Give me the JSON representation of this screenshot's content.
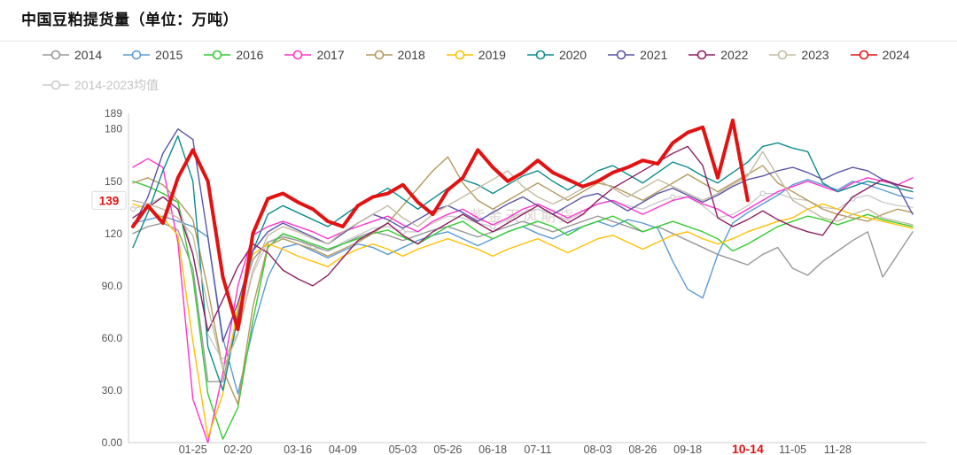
{
  "chart_data": {
    "type": "line",
    "title": "中国豆粕提货量（单位：万吨）",
    "watermark": "紫金天风期货",
    "xlabel": "",
    "ylabel": "",
    "grid": false,
    "legend_position": "top",
    "ylim": [
      0,
      189
    ],
    "n_points": 53,
    "y_ticks": [
      {
        "v": 0,
        "label": "0.00"
      },
      {
        "v": 30,
        "label": "30.0"
      },
      {
        "v": 60,
        "label": "60.0"
      },
      {
        "v": 90,
        "label": "90.0"
      },
      {
        "v": 120,
        "label": "120"
      },
      {
        "v": 150,
        "label": "150"
      },
      {
        "v": 180,
        "label": "180"
      },
      {
        "v": 189,
        "label": "189"
      }
    ],
    "y_highlight": {
      "v": 139,
      "label": "139",
      "color": "#E31212"
    },
    "x_ticks": [
      {
        "i": 4,
        "label": "01-25"
      },
      {
        "i": 7,
        "label": "02-20"
      },
      {
        "i": 11,
        "label": "03-16"
      },
      {
        "i": 14,
        "label": "04-09"
      },
      {
        "i": 18,
        "label": "05-03"
      },
      {
        "i": 21,
        "label": "05-26"
      },
      {
        "i": 24,
        "label": "06-18"
      },
      {
        "i": 27,
        "label": "07-11"
      },
      {
        "i": 31,
        "label": "08-03"
      },
      {
        "i": 34,
        "label": "08-26"
      },
      {
        "i": 37,
        "label": "09-18"
      },
      {
        "i": 41,
        "label": "10-14",
        "highlight": true
      },
      {
        "i": 44,
        "label": "11-05"
      },
      {
        "i": 47,
        "label": "11-28"
      }
    ],
    "series": [
      {
        "name": "2014",
        "color": "#999999",
        "width": 1.4,
        "row": 1,
        "values": [
          120,
          124,
          126,
          122,
          100,
          35,
          35,
          75,
          105,
          115,
          118,
          116,
          113,
          110,
          114,
          118,
          121,
          119,
          116,
          119,
          122,
          124,
          121,
          118,
          121,
          124,
          127,
          124,
          121,
          124,
          127,
          130,
          127,
          124,
          121,
          124,
          120,
          116,
          112,
          108,
          105,
          102,
          108,
          112,
          100,
          96,
          104,
          110,
          116,
          121,
          95,
          108,
          121
        ]
      },
      {
        "name": "2015",
        "color": "#5B9BD5",
        "width": 1.4,
        "row": 1,
        "values": [
          126,
          128,
          130,
          127,
          124,
          118,
          60,
          28,
          65,
          95,
          112,
          114,
          110,
          106,
          110,
          114,
          112,
          108,
          112,
          116,
          119,
          121,
          117,
          113,
          117,
          121,
          124,
          120,
          117,
          121,
          124,
          127,
          124,
          128,
          126,
          123,
          104,
          88,
          83,
          108,
          126,
          132,
          137,
          142,
          148,
          151,
          148,
          145,
          150,
          148,
          145,
          142,
          140
        ]
      },
      {
        "name": "2016",
        "color": "#33CC33",
        "width": 1.4,
        "row": 1,
        "values": [
          150,
          147,
          143,
          138,
          95,
          28,
          2,
          20,
          70,
          112,
          120,
          117,
          114,
          111,
          114,
          117,
          120,
          122,
          118,
          114,
          119,
          124,
          127,
          121,
          117,
          121,
          124,
          127,
          124,
          119,
          124,
          127,
          130,
          126,
          121,
          124,
          127,
          124,
          121,
          117,
          110,
          114,
          119,
          124,
          127,
          130,
          128,
          125,
          128,
          131,
          128,
          126,
          124
        ]
      },
      {
        "name": "2017",
        "color": "#FF33CC",
        "width": 1.4,
        "row": 1,
        "values": [
          158,
          163,
          158,
          115,
          25,
          0,
          40,
          90,
          119,
          124,
          127,
          124,
          121,
          117,
          121,
          124,
          127,
          130,
          125,
          121,
          127,
          131,
          134,
          129,
          125,
          129,
          134,
          137,
          133,
          129,
          133,
          137,
          139,
          135,
          131,
          135,
          139,
          141,
          137,
          134,
          129,
          134,
          139,
          144,
          147,
          150,
          147,
          144,
          149,
          152,
          150,
          148,
          152
        ]
      },
      {
        "name": "2018",
        "color": "#B3995C",
        "width": 1.4,
        "row": 1,
        "values": [
          149,
          152,
          148,
          139,
          128,
          88,
          42,
          22,
          78,
          113,
          117,
          114,
          111,
          107,
          111,
          115,
          120,
          126,
          136,
          146,
          156,
          164,
          149,
          139,
          134,
          139,
          144,
          149,
          144,
          139,
          144,
          149,
          147,
          143,
          139,
          144,
          149,
          154,
          149,
          144,
          149,
          154,
          159,
          149,
          144,
          139,
          134,
          131,
          129,
          127,
          131,
          134,
          132
        ]
      },
      {
        "name": "2019",
        "color": "#FFC000",
        "width": 1.4,
        "row": 1,
        "values": [
          137,
          134,
          129,
          119,
          58,
          3,
          28,
          78,
          108,
          114,
          111,
          107,
          104,
          101,
          107,
          111,
          114,
          111,
          107,
          111,
          114,
          117,
          114,
          111,
          107,
          111,
          114,
          117,
          113,
          109,
          113,
          117,
          119,
          115,
          111,
          115,
          119,
          121,
          117,
          114,
          117,
          121,
          124,
          127,
          129,
          134,
          137,
          134,
          131,
          129,
          127,
          125,
          123
        ]
      },
      {
        "name": "2020",
        "color": "#0E8C8C",
        "width": 1.4,
        "row": 1,
        "values": [
          112,
          132,
          156,
          176,
          150,
          55,
          30,
          72,
          110,
          131,
          136,
          132,
          128,
          124,
          130,
          136,
          141,
          146,
          140,
          134,
          140,
          146,
          151,
          148,
          143,
          148,
          153,
          156,
          150,
          145,
          150,
          156,
          159,
          154,
          149,
          155,
          161,
          158,
          153,
          149,
          155,
          161,
          170,
          172,
          169,
          167,
          149,
          144,
          147,
          150,
          148,
          146,
          144
        ]
      },
      {
        "name": "2021",
        "color": "#5B55A8",
        "width": 1.4,
        "row": 1,
        "values": [
          124,
          141,
          166,
          180,
          174,
          118,
          58,
          80,
          110,
          121,
          126,
          122,
          118,
          114,
          120,
          126,
          131,
          128,
          123,
          128,
          133,
          136,
          132,
          127,
          132,
          137,
          141,
          136,
          131,
          136,
          141,
          143,
          138,
          133,
          138,
          143,
          146,
          142,
          138,
          142,
          147,
          151,
          153,
          156,
          158,
          155,
          151,
          155,
          158,
          156,
          151,
          147,
          131
        ]
      },
      {
        "name": "2022",
        "color": "#8F2063",
        "width": 1.4,
        "row": 1,
        "values": [
          129,
          135,
          141,
          134,
          108,
          64,
          82,
          101,
          114,
          109,
          99,
          94,
          90,
          96,
          106,
          116,
          121,
          126,
          119,
          114,
          121,
          126,
          131,
          126,
          121,
          126,
          131,
          136,
          131,
          126,
          131,
          139,
          146,
          151,
          156,
          161,
          166,
          170,
          159,
          129,
          124,
          128,
          133,
          128,
          124,
          121,
          119,
          131,
          141,
          146,
          151,
          148,
          146
        ]
      },
      {
        "name": "2023",
        "color": "#C4BBA4",
        "width": 1.4,
        "row": 1,
        "values": [
          139,
          137,
          134,
          129,
          119,
          78,
          42,
          62,
          99,
          119,
          124,
          121,
          117,
          114,
          121,
          126,
          131,
          136,
          129,
          124,
          131,
          136,
          141,
          146,
          151,
          156,
          147,
          141,
          137,
          141,
          146,
          151,
          146,
          141,
          146,
          151,
          147,
          143,
          139,
          143,
          148,
          153,
          167,
          153,
          139,
          134,
          129,
          127,
          131,
          134,
          129,
          127,
          125
        ]
      },
      {
        "name": "2024",
        "color": "#E31212",
        "width": 4,
        "row": 1,
        "values": [
          124,
          136,
          126,
          152,
          168,
          150,
          95,
          65,
          120,
          140,
          143,
          138,
          134,
          127,
          124,
          136,
          141,
          143,
          148,
          138,
          131,
          145,
          152,
          168,
          158,
          150,
          155,
          162,
          155,
          151,
          147,
          150,
          155,
          158,
          162,
          160,
          172,
          178,
          181,
          152,
          185,
          139
        ]
      },
      {
        "name": "2014-2023均值",
        "color": "#C9C9C9",
        "width": 1.3,
        "row": 2,
        "values": [
          134,
          137,
          141,
          138,
          109,
          62,
          47,
          63,
          97,
          115,
          119,
          116,
          112,
          110,
          115,
          119,
          123,
          124,
          121,
          121,
          126,
          130,
          129,
          126,
          124,
          128,
          132,
          134,
          131,
          128,
          132,
          137,
          139,
          136,
          134,
          138,
          141,
          141,
          136,
          129,
          131,
          136,
          143,
          143,
          140,
          139,
          135,
          134,
          140,
          142,
          138,
          136,
          135
        ]
      }
    ]
  }
}
